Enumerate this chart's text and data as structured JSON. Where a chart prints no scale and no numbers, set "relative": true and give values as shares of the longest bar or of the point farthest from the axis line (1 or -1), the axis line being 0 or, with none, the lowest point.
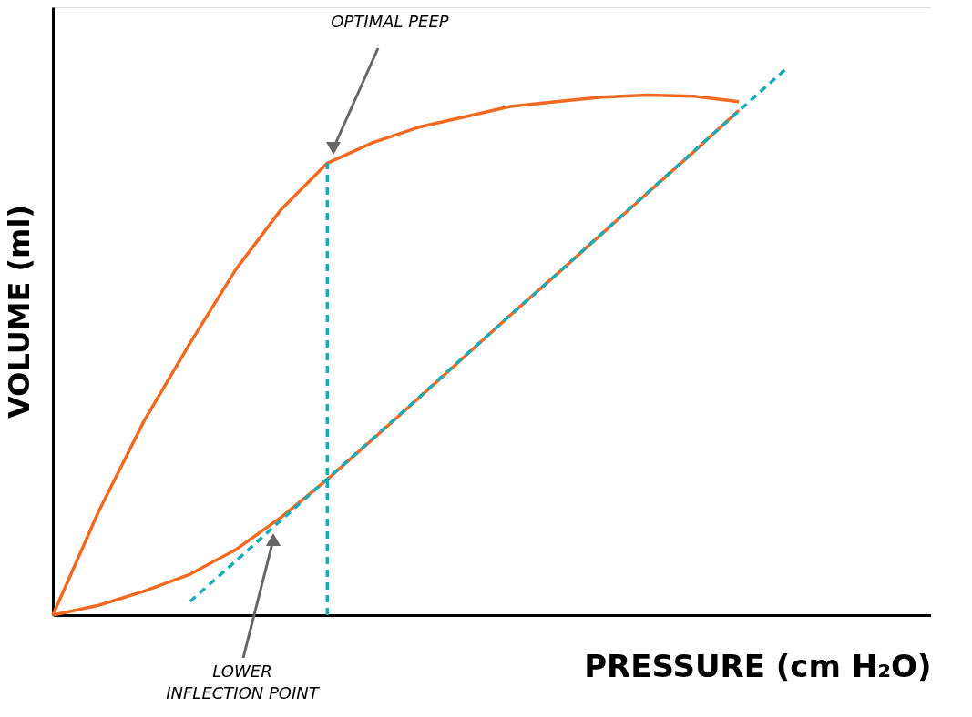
{
  "chart_data": {
    "type": "line",
    "relative": true,
    "xlabel": "PRESSURE (cm H₂O)",
    "ylabel": "VOLUME (ml)",
    "grid": false,
    "marker": "none",
    "categories": [
      null,
      null,
      null,
      null,
      null,
      null,
      null,
      null,
      null,
      null,
      null,
      null,
      null,
      null,
      null,
      null,
      null
    ],
    "series": [
      {
        "color": "#f26a21",
        "line_style": "solid",
        "values": [
          0,
          0.19,
          0.357,
          0.499,
          0.634,
          0.745,
          0.829,
          0.867,
          0.895,
          0.914,
          0.933,
          0.942,
          0.95,
          0.954,
          0.952,
          0.942,
          null
        ]
      },
      {
        "color": "#f26a21",
        "line_style": "solid",
        "values": [
          0,
          0.018,
          0.044,
          0.075,
          0.12,
          0.18,
          0.249,
          0.323,
          0.398,
          0.474,
          0.55,
          0.624,
          0.699,
          0.774,
          0.849,
          0.926,
          null
        ]
      },
      {
        "color": "#1aabb8",
        "line_style": "dashed",
        "values": [
          null,
          null,
          null,
          0.025,
          0.099,
          0.175,
          0.25,
          0.324,
          0.399,
          0.475,
          0.55,
          0.624,
          0.7,
          0.775,
          0.85,
          0.925,
          1
        ]
      }
    ],
    "annotations": [
      "OPTIMAL PEEP",
      "LOWER INFLECTION POINT"
    ]
  }
}
